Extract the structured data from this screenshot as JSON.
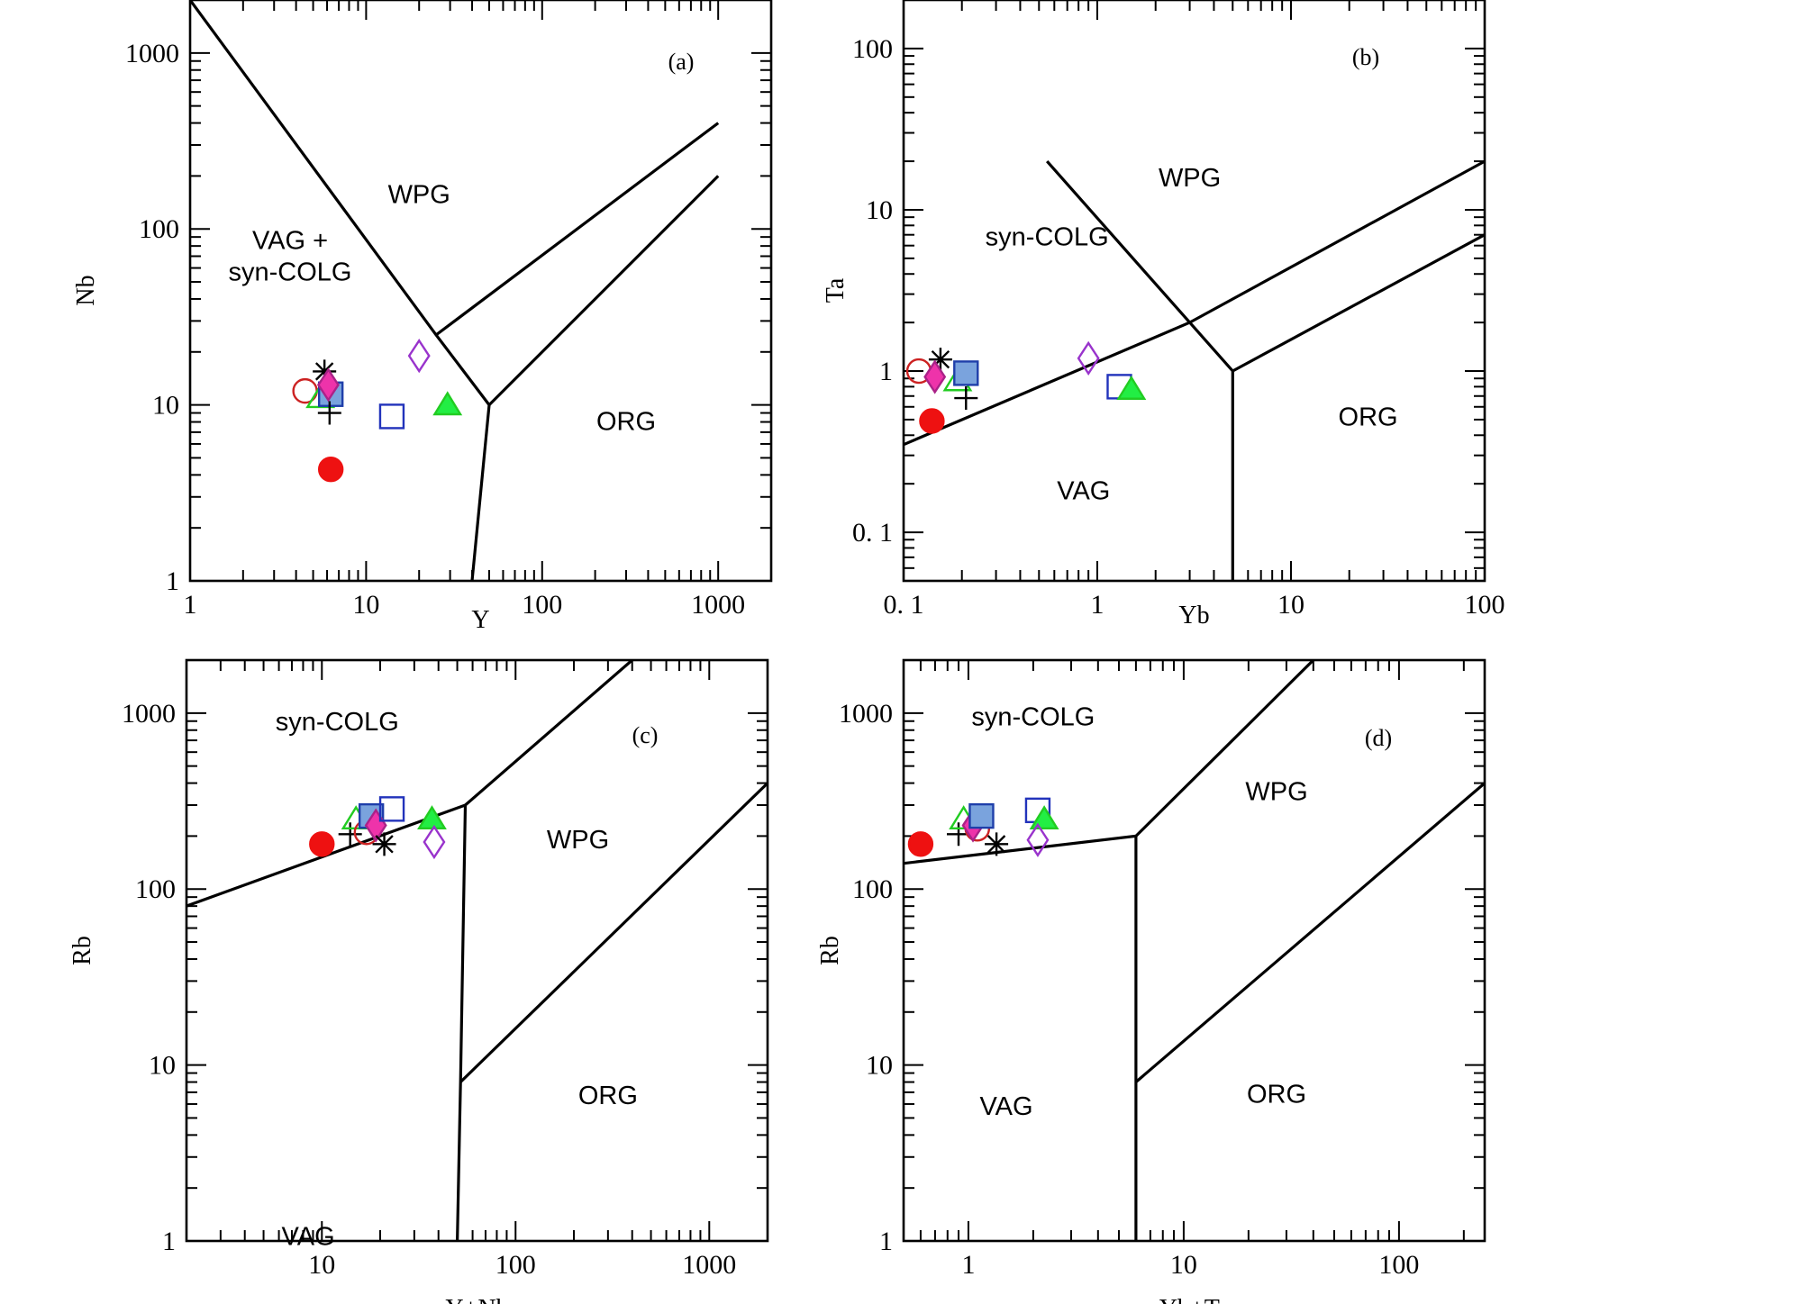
{
  "chart_data": [
    {
      "type": "scatter",
      "panel_label": "(a)",
      "xlabel": "Y",
      "ylabel": "Nb",
      "xscale": "log",
      "yscale": "log",
      "xlim": [
        1,
        2000
      ],
      "ylim": [
        1,
        2000
      ],
      "x_ticks": [
        {
          "v": 1,
          "t": "1"
        },
        {
          "v": 10,
          "t": "10"
        },
        {
          "v": 100,
          "t": "100"
        },
        {
          "v": 1000,
          "t": "1000"
        }
      ],
      "y_ticks": [
        {
          "v": 1,
          "t": "1"
        },
        {
          "v": 10,
          "t": "10"
        },
        {
          "v": 100,
          "t": "100"
        },
        {
          "v": 1000,
          "t": "1000"
        }
      ],
      "regions": [
        {
          "text": "WPG",
          "x": 20,
          "y": 140
        },
        {
          "text": "VAG +",
          "x": 3.7,
          "y": 77
        },
        {
          "text": "syn-COLG",
          "x": 3.7,
          "y": 51
        },
        {
          "text": "ORG",
          "x": 300,
          "y": 7.2
        }
      ],
      "boundaries": [
        [
          [
            1,
            2000
          ],
          [
            25,
            25
          ],
          [
            50,
            10
          ],
          [
            40,
            1
          ]
        ],
        [
          [
            25,
            25
          ],
          [
            1000,
            400
          ]
        ],
        [
          [
            50,
            10
          ],
          [
            1000,
            200
          ]
        ]
      ],
      "series": [
        {
          "marker": "open-circle",
          "x": [
            4.5
          ],
          "y": [
            12
          ]
        },
        {
          "marker": "asterisk",
          "x": [
            5.8
          ],
          "y": [
            15.5
          ]
        },
        {
          "marker": "open-triangle",
          "x": [
            5.5
          ],
          "y": [
            11
          ]
        },
        {
          "marker": "filled-square",
          "x": [
            6.3
          ],
          "y": [
            11.5
          ]
        },
        {
          "marker": "filled-diamond",
          "x": [
            6.1
          ],
          "y": [
            13
          ]
        },
        {
          "marker": "plus",
          "x": [
            6.2
          ],
          "y": [
            9
          ]
        },
        {
          "marker": "filled-circle",
          "x": [
            6.3
          ],
          "y": [
            4.3
          ]
        },
        {
          "marker": "open-square",
          "x": [
            14
          ],
          "y": [
            8.6
          ]
        },
        {
          "marker": "open-diamond",
          "x": [
            20
          ],
          "y": [
            19
          ]
        },
        {
          "marker": "filled-triangle",
          "x": [
            29
          ],
          "y": [
            10
          ]
        }
      ]
    },
    {
      "type": "scatter",
      "panel_label": "(b)",
      "xlabel": "Yb",
      "ylabel": "Ta",
      "xscale": "log",
      "yscale": "log",
      "xlim": [
        0.1,
        100
      ],
      "ylim": [
        0.05,
        200
      ],
      "x_ticks": [
        {
          "v": 0.1,
          "t": "0. 1"
        },
        {
          "v": 1,
          "t": "1"
        },
        {
          "v": 10,
          "t": "10"
        },
        {
          "v": 100,
          "t": "100"
        }
      ],
      "y_ticks": [
        {
          "v": 0.1,
          "t": "0. 1"
        },
        {
          "v": 1,
          "t": "1"
        },
        {
          "v": 10,
          "t": "10"
        },
        {
          "v": 100,
          "t": "100"
        }
      ],
      "regions": [
        {
          "text": "WPG",
          "x": 3,
          "y": 14
        },
        {
          "text": "syn-COLG",
          "x": 0.55,
          "y": 6
        },
        {
          "text": "VAG",
          "x": 0.85,
          "y": 0.16
        },
        {
          "text": "ORG",
          "x": 25,
          "y": 0.46
        }
      ],
      "boundaries": [
        [
          [
            0.1,
            0.35
          ],
          [
            3,
            2
          ],
          [
            100,
            20
          ]
        ],
        [
          [
            0.55,
            20
          ],
          [
            3,
            2
          ],
          [
            5,
            1
          ],
          [
            5,
            0.05
          ]
        ],
        [
          [
            5,
            1
          ],
          [
            100,
            7
          ]
        ]
      ],
      "series": [
        {
          "marker": "open-circle",
          "x": [
            0.12
          ],
          "y": [
            1
          ]
        },
        {
          "marker": "asterisk",
          "x": [
            0.155
          ],
          "y": [
            1.18
          ]
        },
        {
          "marker": "filled-diamond",
          "x": [
            0.145
          ],
          "y": [
            0.92
          ]
        },
        {
          "marker": "open-triangle",
          "x": [
            0.19
          ],
          "y": [
            0.87
          ]
        },
        {
          "marker": "filled-square",
          "x": [
            0.21
          ],
          "y": [
            0.97
          ]
        },
        {
          "marker": "plus",
          "x": [
            0.21
          ],
          "y": [
            0.68
          ]
        },
        {
          "marker": "filled-circle",
          "x": [
            0.14
          ],
          "y": [
            0.49
          ]
        },
        {
          "marker": "open-diamond",
          "x": [
            0.9
          ],
          "y": [
            1.2
          ]
        },
        {
          "marker": "open-square",
          "x": [
            1.3
          ],
          "y": [
            0.8
          ]
        },
        {
          "marker": "filled-triangle",
          "x": [
            1.5
          ],
          "y": [
            0.77
          ]
        }
      ]
    },
    {
      "type": "scatter",
      "panel_label": "(c)",
      "xlabel": "Y+Nb",
      "ylabel": "Rb",
      "xscale": "log",
      "yscale": "log",
      "xlim": [
        2,
        2000
      ],
      "ylim": [
        1,
        2000
      ],
      "x_ticks": [
        {
          "v": 10,
          "t": "10"
        },
        {
          "v": 100,
          "t": "100"
        },
        {
          "v": 1000,
          "t": "1000"
        }
      ],
      "y_ticks": [
        {
          "v": 1,
          "t": "1"
        },
        {
          "v": 10,
          "t": "10"
        },
        {
          "v": 100,
          "t": "100"
        },
        {
          "v": 1000,
          "t": "1000"
        }
      ],
      "regions": [
        {
          "text": "syn-COLG",
          "x": 12,
          "y": 800
        },
        {
          "text": "WPG",
          "x": 210,
          "y": 170
        },
        {
          "text": "ORG",
          "x": 300,
          "y": 6
        },
        {
          "text": "VAG",
          "x": 8.5,
          "y": 0.95
        }
      ],
      "boundaries": [
        [
          [
            2,
            80
          ],
          [
            55,
            300
          ],
          [
            400,
            2000
          ]
        ],
        [
          [
            55,
            300
          ],
          [
            52,
            8
          ],
          [
            50,
            1
          ]
        ],
        [
          [
            52,
            8
          ],
          [
            2000,
            400
          ]
        ]
      ],
      "series": [
        {
          "marker": "filled-circle",
          "x": [
            10
          ],
          "y": [
            180
          ]
        },
        {
          "marker": "plus",
          "x": [
            14
          ],
          "y": [
            205
          ]
        },
        {
          "marker": "open-triangle",
          "x": [
            15
          ],
          "y": [
            250
          ]
        },
        {
          "marker": "open-circle",
          "x": [
            17
          ],
          "y": [
            210
          ]
        },
        {
          "marker": "filled-square",
          "x": [
            18
          ],
          "y": [
            260
          ]
        },
        {
          "marker": "filled-diamond",
          "x": [
            19
          ],
          "y": [
            230
          ]
        },
        {
          "marker": "open-square",
          "x": [
            23
          ],
          "y": [
            285
          ]
        },
        {
          "marker": "asterisk",
          "x": [
            21
          ],
          "y": [
            180
          ]
        },
        {
          "marker": "filled-triangle",
          "x": [
            37
          ],
          "y": [
            250
          ]
        },
        {
          "marker": "open-diamond",
          "x": [
            38
          ],
          "y": [
            185
          ]
        }
      ]
    },
    {
      "type": "scatter",
      "panel_label": "(d)",
      "xlabel": "Yb+Ta",
      "ylabel": "Rb",
      "xscale": "log",
      "yscale": "log",
      "xlim": [
        0.5,
        250
      ],
      "ylim": [
        1,
        2000
      ],
      "x_ticks": [
        {
          "v": 1,
          "t": "1"
        },
        {
          "v": 10,
          "t": "10"
        },
        {
          "v": 100,
          "t": "100"
        }
      ],
      "y_ticks": [
        {
          "v": 1,
          "t": "1"
        },
        {
          "v": 10,
          "t": "10"
        },
        {
          "v": 100,
          "t": "100"
        },
        {
          "v": 1000,
          "t": "1000"
        }
      ],
      "regions": [
        {
          "text": "syn-COLG",
          "x": 2,
          "y": 850
        },
        {
          "text": "WPG",
          "x": 27,
          "y": 320
        },
        {
          "text": "ORG",
          "x": 27,
          "y": 6.1
        },
        {
          "text": "VAG",
          "x": 1.5,
          "y": 5.2
        }
      ],
      "boundaries": [
        [
          [
            0.5,
            140
          ],
          [
            6,
            200
          ],
          [
            40,
            2000
          ]
        ],
        [
          [
            6,
            200
          ],
          [
            6,
            1
          ]
        ],
        [
          [
            6,
            8
          ],
          [
            250,
            400
          ]
        ]
      ],
      "series": [
        {
          "marker": "filled-circle",
          "x": [
            0.6
          ],
          "y": [
            180
          ]
        },
        {
          "marker": "plus",
          "x": [
            0.9
          ],
          "y": [
            205
          ]
        },
        {
          "marker": "open-triangle",
          "x": [
            0.95
          ],
          "y": [
            250
          ]
        },
        {
          "marker": "open-circle",
          "x": [
            1.1
          ],
          "y": [
            220
          ]
        },
        {
          "marker": "filled-diamond",
          "x": [
            1.05
          ],
          "y": [
            230
          ]
        },
        {
          "marker": "filled-square",
          "x": [
            1.15
          ],
          "y": [
            260
          ]
        },
        {
          "marker": "asterisk",
          "x": [
            1.35
          ],
          "y": [
            180
          ]
        },
        {
          "marker": "open-square",
          "x": [
            2.1
          ],
          "y": [
            280
          ]
        },
        {
          "marker": "filled-triangle",
          "x": [
            2.25
          ],
          "y": [
            250
          ]
        },
        {
          "marker": "open-diamond",
          "x": [
            2.1
          ],
          "y": [
            190
          ]
        }
      ]
    }
  ],
  "marker_styles": {
    "open-circle": {
      "stroke": "#cc2222",
      "fill": "none"
    },
    "filled-circle": {
      "stroke": "#ee1111",
      "fill": "#ee1111"
    },
    "asterisk": {
      "stroke": "#000000",
      "fill": "none"
    },
    "plus": {
      "stroke": "#000000",
      "fill": "none"
    },
    "open-triangle": {
      "stroke": "#22cc22",
      "fill": "none"
    },
    "filled-triangle": {
      "stroke": "#22cc22",
      "fill": "#22ee44"
    },
    "filled-square": {
      "stroke": "#1f3faa",
      "fill": "#7aa3dd"
    },
    "open-square": {
      "stroke": "#2233bb",
      "fill": "none"
    },
    "filled-diamond": {
      "stroke": "#aa2288",
      "fill": "#ee33aa"
    },
    "open-diamond": {
      "stroke": "#9933cc",
      "fill": "none"
    }
  }
}
